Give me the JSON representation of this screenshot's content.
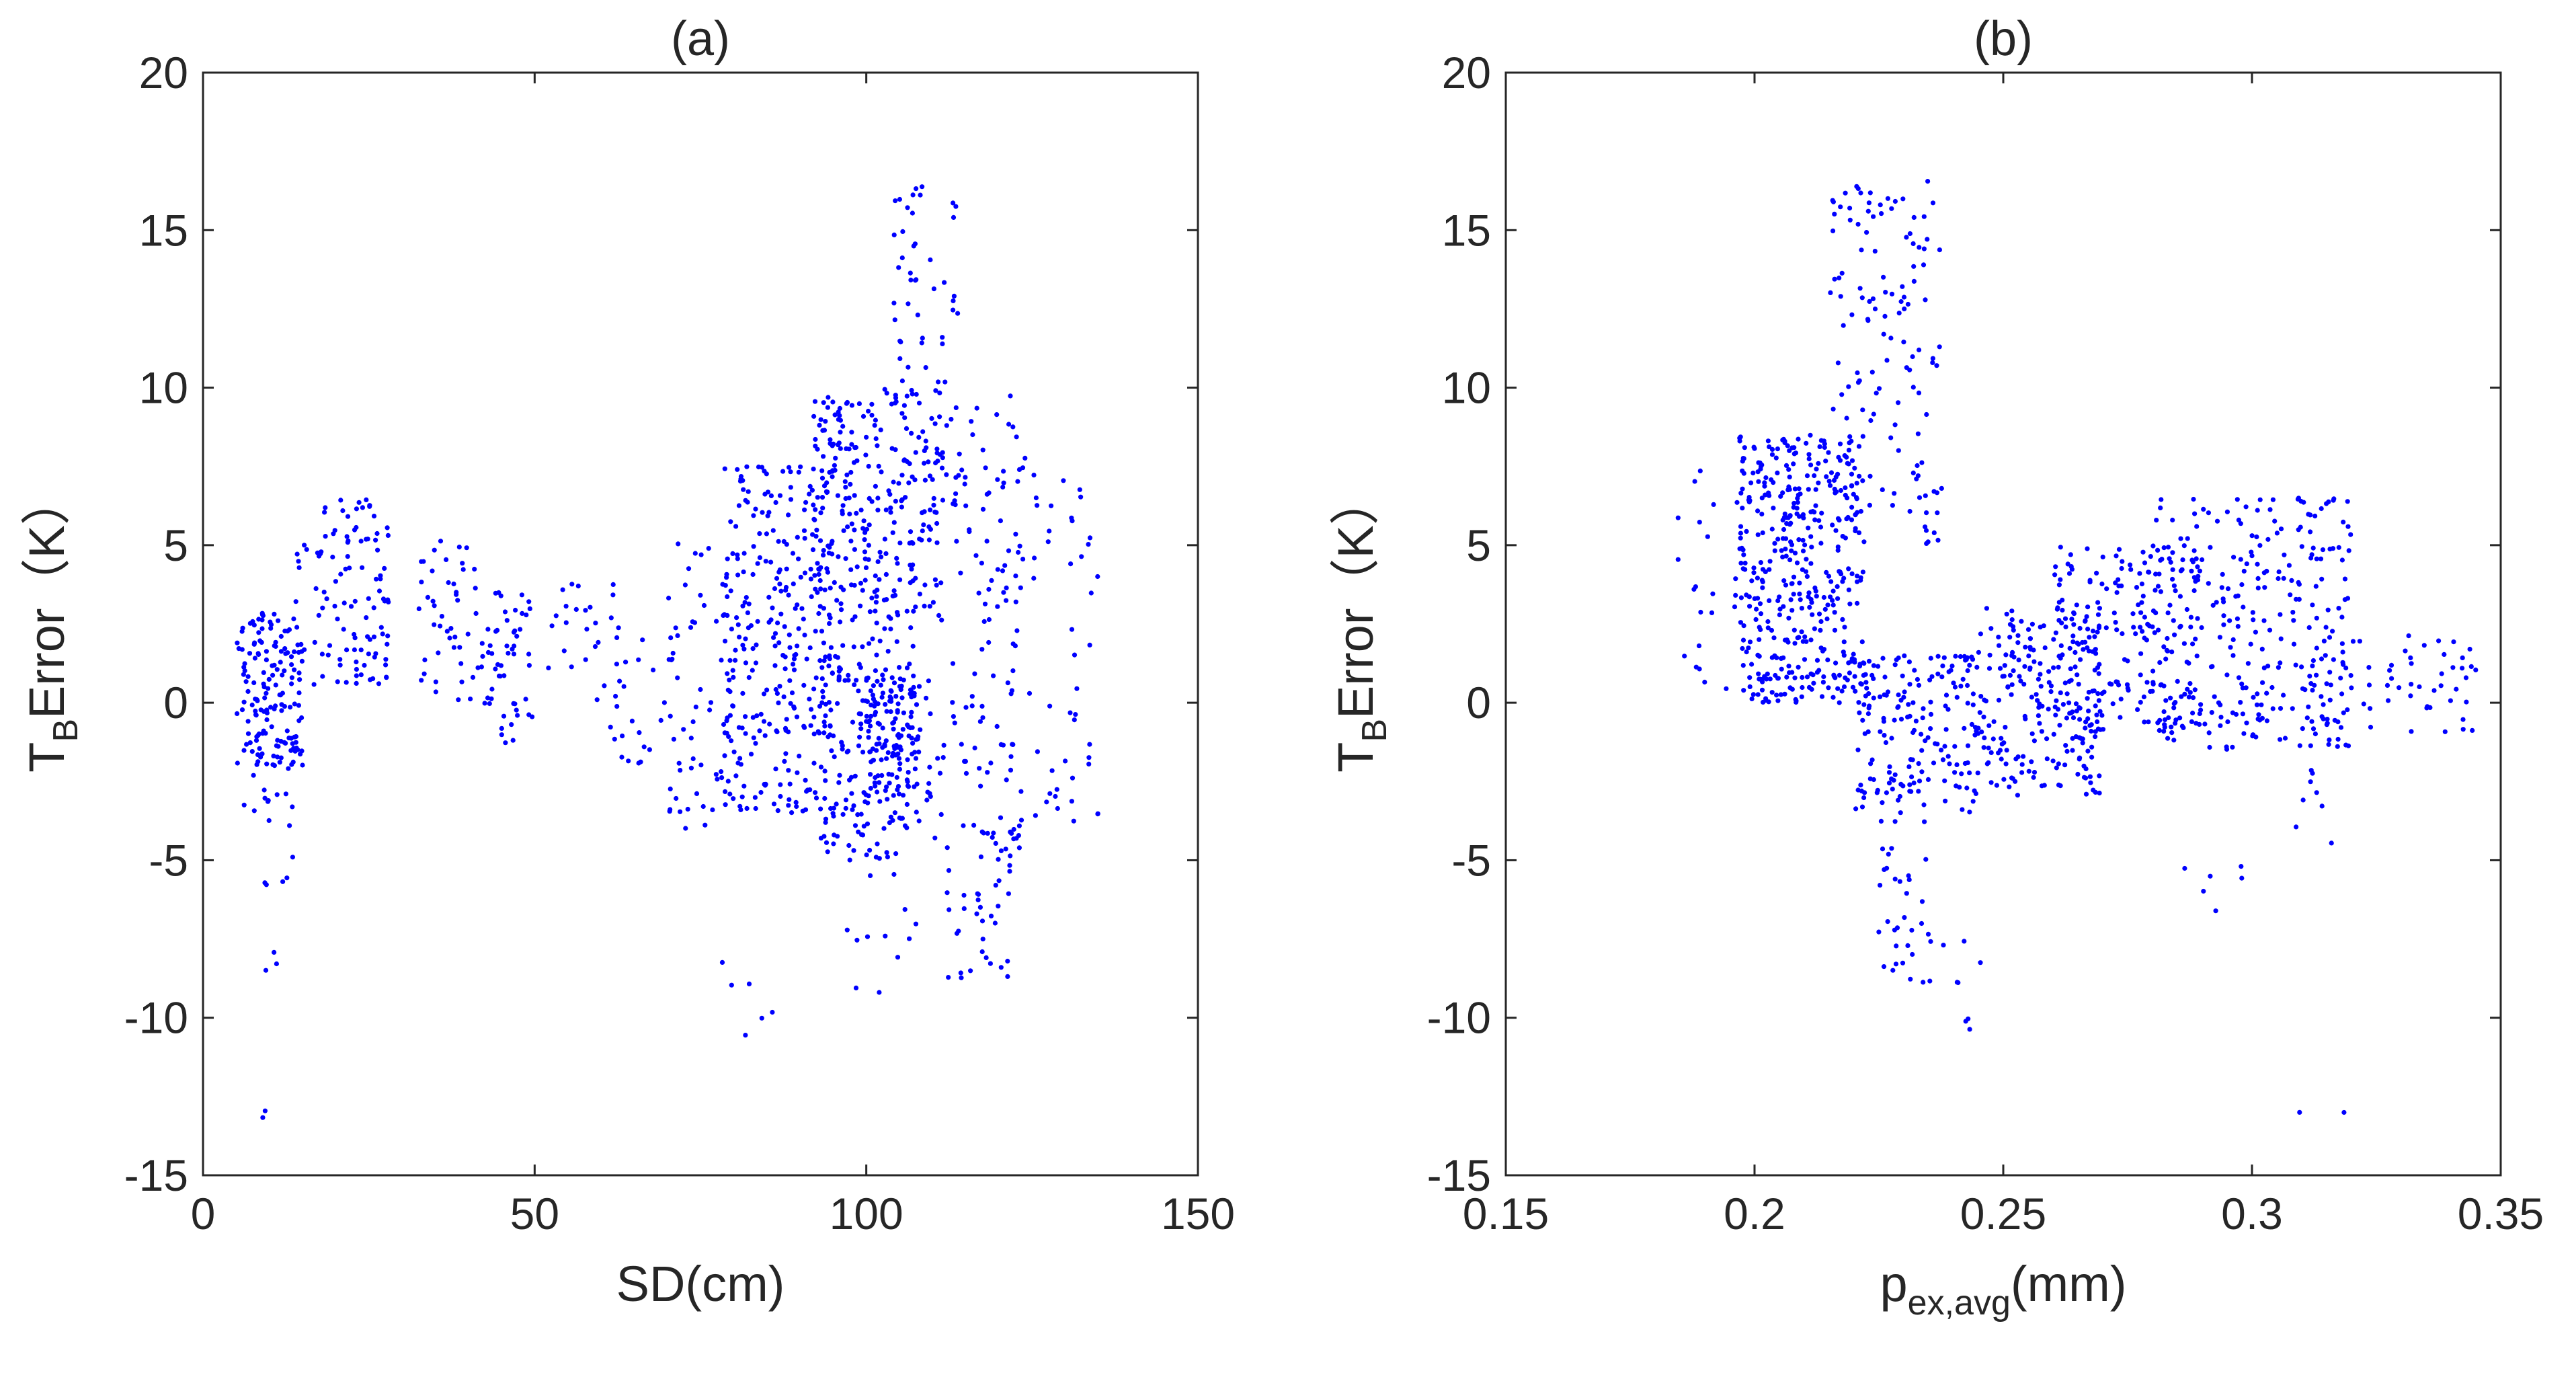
{
  "figure": {
    "marker_color": "#0000ff",
    "axis_color": "#262626",
    "background": "#ffffff"
  },
  "chart_data": [
    {
      "type": "scatter",
      "title": "(a)",
      "xlabel": "SD(cm)",
      "ylabel": {
        "main": "T",
        "sub": "B",
        "rest": "Error（K）"
      },
      "xlim": [
        0,
        150
      ],
      "ylim": [
        -15,
        20
      ],
      "xticks": [
        0,
        50,
        100,
        150
      ],
      "xtick_labels": [
        "0",
        "50",
        "100",
        "150"
      ],
      "yticks": [
        20,
        15,
        10,
        5,
        0,
        -5,
        -10,
        -15
      ],
      "ytick_labels": [
        "20",
        "15",
        "10",
        "5",
        "0",
        "-5",
        "-10",
        "-15"
      ],
      "grid": false,
      "series": [
        {
          "name": "points",
          "color": "#0000ff",
          "clusters": [
            {
              "x": [
                5,
                15
              ],
              "y": [
                -2,
                3
              ],
              "n": 150
            },
            {
              "x": [
                6,
                14
              ],
              "y": [
                -6,
                -1
              ],
              "n": 25
            },
            {
              "x": [
                8,
                10
              ],
              "y": [
                -13.2,
                -12.4
              ],
              "n": 2
            },
            {
              "x": [
                8,
                12
              ],
              "y": [
                -8.5,
                -7.2
              ],
              "n": 3
            },
            {
              "x": [
                14,
                28
              ],
              "y": [
                0.5,
                6.5
              ],
              "n": 110
            },
            {
              "x": [
                32,
                42
              ],
              "y": [
                0,
                5.2
              ],
              "n": 45
            },
            {
              "x": [
                42,
                50
              ],
              "y": [
                -1.3,
                3.5
              ],
              "n": 55
            },
            {
              "x": [
                52,
                62
              ],
              "y": [
                0,
                3.8
              ],
              "n": 22
            },
            {
              "x": [
                60,
                72
              ],
              "y": [
                -2,
                2.5
              ],
              "n": 30
            },
            {
              "x": [
                70,
                80
              ],
              "y": [
                -4,
                5.5
              ],
              "n": 55
            },
            {
              "x": [
                78,
                95
              ],
              "y": [
                -3.5,
                7.5
              ],
              "n": 280
            },
            {
              "x": [
                92,
                108
              ],
              "y": [
                -5,
                10
              ],
              "n": 420
            },
            {
              "x": [
                100,
                108
              ],
              "y": [
                -2.8,
                1
              ],
              "n": 90
            },
            {
              "x": [
                104,
                114
              ],
              "y": [
                5,
                16.5
              ],
              "n": 85
            },
            {
              "x": [
                108,
                124
              ],
              "y": [
                -5,
                10
              ],
              "n": 150
            },
            {
              "x": [
                112,
                122
              ],
              "y": [
                -9,
                -4
              ],
              "n": 35
            },
            {
              "x": [
                122,
                135
              ],
              "y": [
                -4.5,
                7.5
              ],
              "n": 55
            },
            {
              "x": [
                76,
                92
              ],
              "y": [
                -10.8,
                -7.5
              ],
              "n": 6
            },
            {
              "x": [
                96,
                108
              ],
              "y": [
                -9.2,
                -5
              ],
              "n": 12
            }
          ]
        }
      ]
    },
    {
      "type": "scatter",
      "title": "(b)",
      "xlabel": {
        "main": "p",
        "sub": "ex,avg",
        "rest": "(mm)"
      },
      "ylabel": {
        "main": "T",
        "sub": "B",
        "rest": "Error（K）"
      },
      "xlim": [
        0.15,
        0.35
      ],
      "ylim": [
        -15,
        20
      ],
      "xticks": [
        0.15,
        0.2,
        0.25,
        0.3,
        0.35
      ],
      "xtick_labels": [
        "0.15",
        "0.2",
        "0.25",
        "0.3",
        "0.35"
      ],
      "yticks": [
        20,
        15,
        10,
        5,
        0,
        -5,
        -10,
        -15
      ],
      "ytick_labels": [
        "20",
        "15",
        "10",
        "5",
        "0",
        "-5",
        "-10",
        "-15"
      ],
      "grid": false,
      "series": [
        {
          "name": "points",
          "color": "#0000ff",
          "clusters": [
            {
              "x": [
                0.183,
                0.198
              ],
              "y": [
                -0.2,
                7.5
              ],
              "n": 25
            },
            {
              "x": [
                0.197,
                0.222
              ],
              "y": [
                0,
                8.5
              ],
              "n": 420
            },
            {
              "x": [
                0.215,
                0.238
              ],
              "y": [
                5,
                16.8
              ],
              "n": 130
            },
            {
              "x": [
                0.22,
                0.245
              ],
              "y": [
                -3.5,
                1.5
              ],
              "n": 180
            },
            {
              "x": [
                0.224,
                0.236
              ],
              "y": [
                -9,
                -3.5
              ],
              "n": 35
            },
            {
              "x": [
                0.236,
                0.248
              ],
              "y": [
                -10.8,
                -7.5
              ],
              "n": 8
            },
            {
              "x": [
                0.245,
                0.27
              ],
              "y": [
                -3,
                3
              ],
              "n": 210
            },
            {
              "x": [
                0.26,
                0.29
              ],
              "y": [
                -1,
                5
              ],
              "n": 200
            },
            {
              "x": [
                0.28,
                0.32
              ],
              "y": [
                -1.5,
                6.5
              ],
              "n": 260
            },
            {
              "x": [
                0.31,
                0.345
              ],
              "y": [
                -1,
                2.5
              ],
              "n": 60
            },
            {
              "x": [
                0.28,
                0.3
              ],
              "y": [
                -8,
                -4
              ],
              "n": 6
            },
            {
              "x": [
                0.306,
                0.322
              ],
              "y": [
                -13.2,
                -12.4
              ],
              "n": 2
            },
            {
              "x": [
                0.3,
                0.316
              ],
              "y": [
                -4.5,
                -2
              ],
              "n": 8
            }
          ]
        }
      ]
    }
  ]
}
